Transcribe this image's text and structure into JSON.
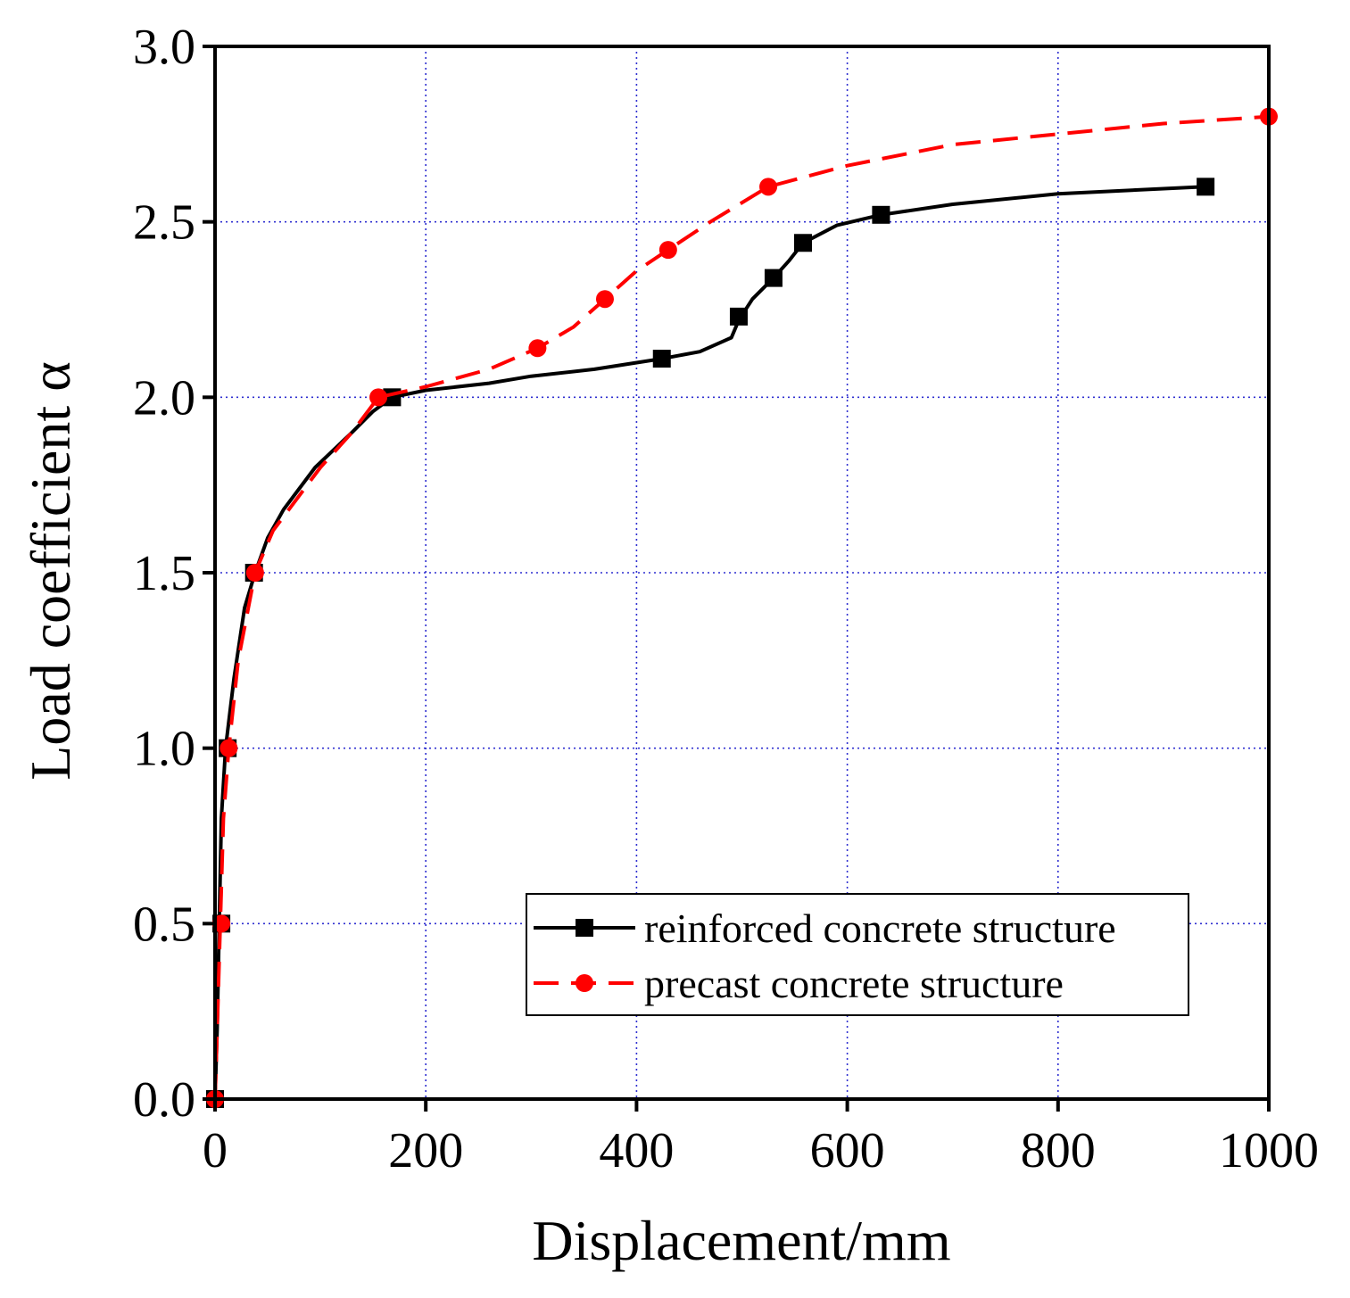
{
  "chart_data": {
    "type": "line",
    "xlabel": "Displacement/mm",
    "ylabel": "Load coefficient α",
    "xlim": [
      0,
      1000
    ],
    "ylim": [
      0,
      3.0
    ],
    "xticks": [
      0,
      200,
      400,
      600,
      800,
      1000
    ],
    "yticks": [
      0.0,
      0.5,
      1.0,
      1.5,
      2.0,
      2.5,
      3.0
    ],
    "xtick_labels": [
      "0",
      "200",
      "400",
      "600",
      "800",
      "1000"
    ],
    "ytick_labels": [
      "0.0",
      "0.5",
      "1.0",
      "1.5",
      "2.0",
      "2.5",
      "3.0"
    ],
    "grid": true,
    "legend_position": "lower-right",
    "series": [
      {
        "name": "reinforced concrete structure",
        "color": "#000000",
        "line_style": "solid",
        "marker": "square",
        "curve": [
          [
            0,
            0
          ],
          [
            2,
            0.2
          ],
          [
            4,
            0.5
          ],
          [
            6,
            0.8
          ],
          [
            10,
            1.0
          ],
          [
            18,
            1.2
          ],
          [
            28,
            1.4
          ],
          [
            38,
            1.5
          ],
          [
            50,
            1.6
          ],
          [
            65,
            1.68
          ],
          [
            95,
            1.8
          ],
          [
            130,
            1.9
          ],
          [
            150,
            1.96
          ],
          [
            168,
            2.0
          ],
          [
            200,
            2.02
          ],
          [
            260,
            2.04
          ],
          [
            300,
            2.06
          ],
          [
            360,
            2.08
          ],
          [
            424,
            2.11
          ],
          [
            460,
            2.13
          ],
          [
            490,
            2.17
          ],
          [
            497,
            2.22
          ],
          [
            510,
            2.28
          ],
          [
            530,
            2.34
          ],
          [
            545,
            2.39
          ],
          [
            558,
            2.44
          ],
          [
            590,
            2.49
          ],
          [
            632,
            2.52
          ],
          [
            700,
            2.55
          ],
          [
            800,
            2.58
          ],
          [
            940,
            2.6
          ]
        ],
        "points": [
          [
            0,
            0
          ],
          [
            6,
            0.5
          ],
          [
            12,
            1.0
          ],
          [
            37,
            1.5
          ],
          [
            168,
            2.0
          ],
          [
            424,
            2.11
          ],
          [
            497,
            2.23
          ],
          [
            530,
            2.34
          ],
          [
            558,
            2.44
          ],
          [
            632,
            2.52
          ],
          [
            940,
            2.6
          ]
        ]
      },
      {
        "name": "precast concrete structure",
        "color": "#ff0000",
        "line_style": "dashed",
        "marker": "circle",
        "curve": [
          [
            0,
            0
          ],
          [
            2,
            0.2
          ],
          [
            5,
            0.5
          ],
          [
            8,
            0.8
          ],
          [
            13,
            1.0
          ],
          [
            22,
            1.25
          ],
          [
            38,
            1.5
          ],
          [
            55,
            1.62
          ],
          [
            100,
            1.8
          ],
          [
            130,
            1.9
          ],
          [
            155,
            2.0
          ],
          [
            200,
            2.03
          ],
          [
            260,
            2.08
          ],
          [
            306,
            2.14
          ],
          [
            340,
            2.2
          ],
          [
            370,
            2.28
          ],
          [
            400,
            2.36
          ],
          [
            430,
            2.42
          ],
          [
            470,
            2.5
          ],
          [
            525,
            2.6
          ],
          [
            600,
            2.66
          ],
          [
            700,
            2.72
          ],
          [
            800,
            2.75
          ],
          [
            900,
            2.78
          ],
          [
            1000,
            2.8
          ]
        ],
        "points": [
          [
            0,
            0
          ],
          [
            6,
            0.5
          ],
          [
            13,
            1.0
          ],
          [
            38,
            1.5
          ],
          [
            155,
            2.0
          ],
          [
            306,
            2.14
          ],
          [
            370,
            2.28
          ],
          [
            430,
            2.42
          ],
          [
            525,
            2.6
          ],
          [
            1000,
            2.8
          ]
        ]
      }
    ]
  }
}
